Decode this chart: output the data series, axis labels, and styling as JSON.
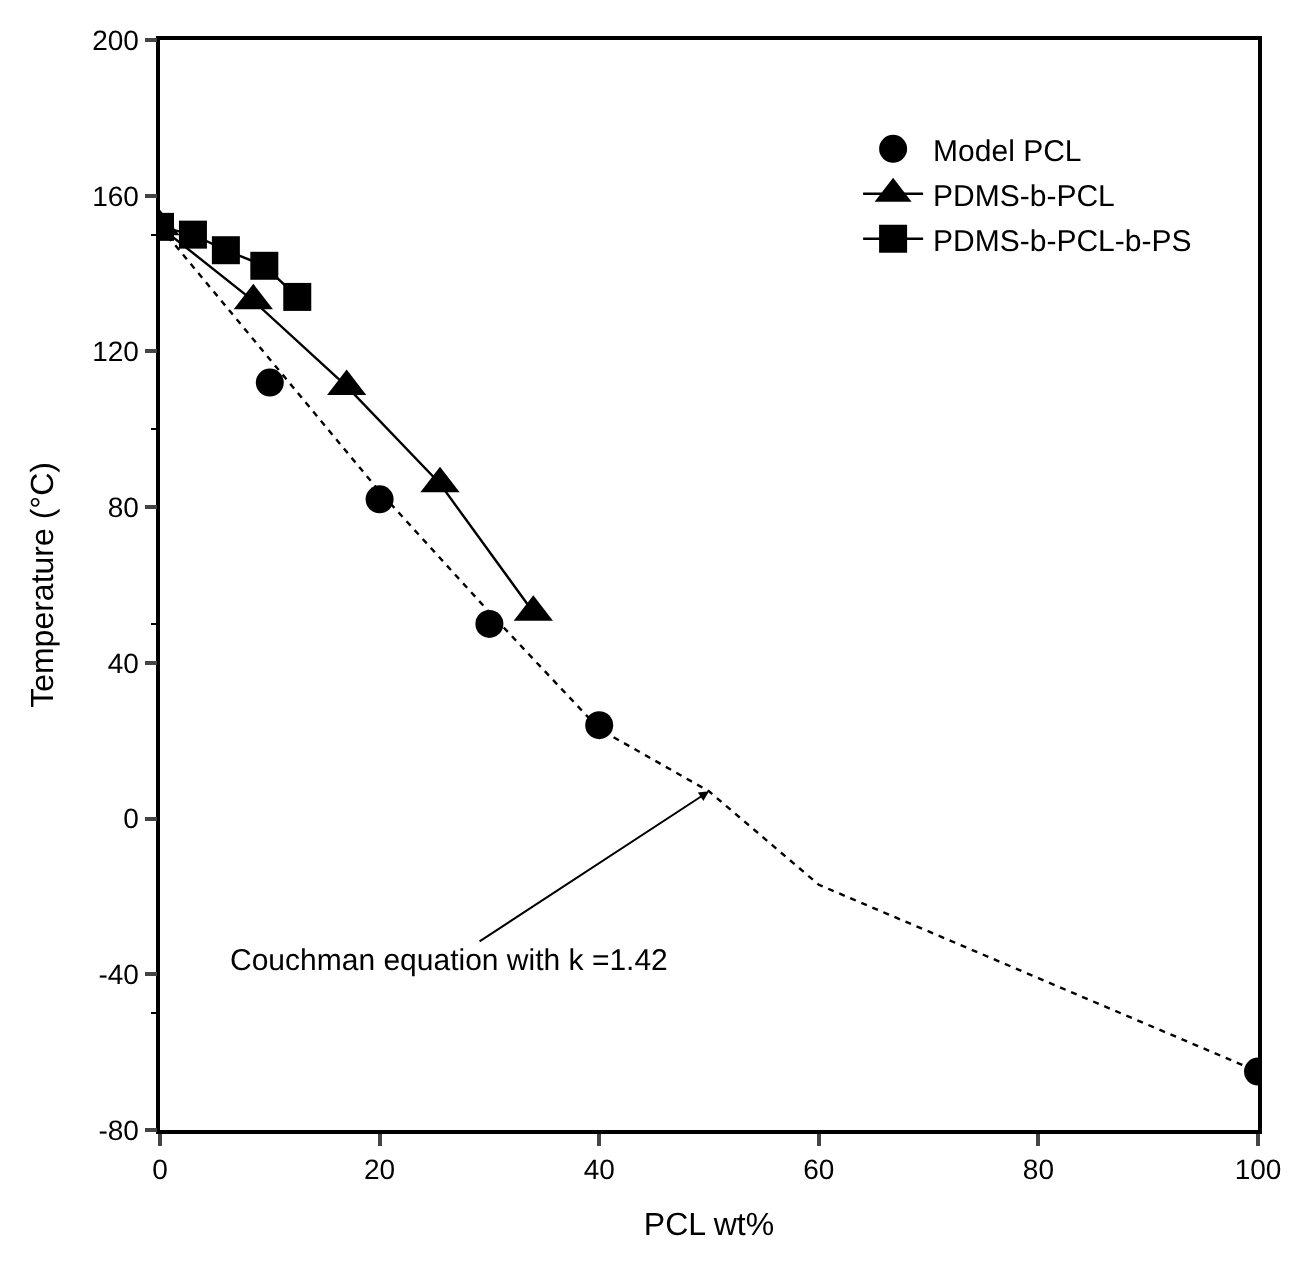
{
  "chart_data": {
    "type": "line",
    "xlabel": "PCL wt%",
    "ylabel": "Temperature (°C)",
    "xlim": [
      0,
      100
    ],
    "xticks": [
      0,
      20,
      40,
      60,
      80,
      100
    ],
    "ylim": [
      -80,
      200
    ],
    "yticks": [
      -80,
      -40,
      0,
      40,
      80,
      120,
      160,
      200
    ],
    "grid": false,
    "legend": "top right",
    "series": [
      {
        "name": "Model PCL",
        "type": "scatter",
        "marker": "circle",
        "color": "#000000",
        "x": [
          10,
          20,
          30,
          40,
          100
        ],
        "values": [
          112,
          82,
          50,
          24,
          -65
        ]
      },
      {
        "name": "PDMS-b-PCL",
        "marker": "triangle",
        "line_style": "solid",
        "color": "#000000",
        "x": [
          0,
          8.5,
          17,
          25.5,
          34
        ],
        "values": [
          152,
          133,
          111,
          86,
          53
        ]
      },
      {
        "name": "PDMS-b-PCL-b-PS",
        "marker": "square",
        "line_style": "solid",
        "color": "#000000",
        "x": [
          0,
          3,
          6,
          9.5,
          12.5
        ],
        "values": [
          152,
          150,
          146,
          142,
          134
        ]
      },
      {
        "marker": "none",
        "line_style": "dotted",
        "color": "#000000",
        "x": [
          0,
          10,
          20,
          30,
          40,
          50,
          60,
          70,
          80,
          90,
          100
        ],
        "values": [
          152,
          118,
          84,
          53,
          23,
          7,
          -17,
          -29,
          -41,
          -53,
          -65
        ]
      }
    ],
    "annotations": [
      {
        "text": "Couchman equation with k =1.42",
        "x": 50,
        "y": 7
      }
    ]
  }
}
